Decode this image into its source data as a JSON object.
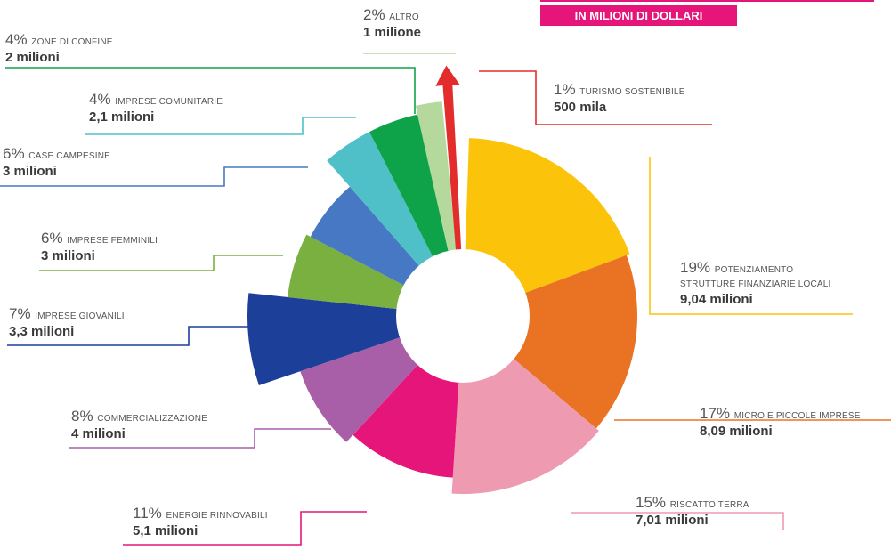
{
  "header": {
    "subtitle": "IN MILIONI DI DOLLARI"
  },
  "chart_data": {
    "type": "pie",
    "title": "",
    "subtitle": "IN MILIONI DI DOLLARI",
    "unit": "milioni di dollari",
    "slices": [
      {
        "key": "strutture",
        "pct_label": "19%",
        "category": "POTENZIAMENTO",
        "category2": "STRUTTURE FINANZIARIE LOCALI",
        "amount_label": "9,04 milioni",
        "percent": 19,
        "value": 9.04,
        "color": "#fbc40a"
      },
      {
        "key": "micro",
        "pct_label": "17%",
        "category": "MICRO E PICCOLE IMPRESE",
        "amount_label": "8,09 milioni",
        "percent": 17,
        "value": 8.09,
        "color": "#ea7223"
      },
      {
        "key": "riscatto",
        "pct_label": "15%",
        "category": "RISCATTO TERRA",
        "amount_label": "7,01 milioni",
        "percent": 15,
        "value": 7.01,
        "color": "#ee9ab0"
      },
      {
        "key": "energie",
        "pct_label": "11%",
        "category": "ENERGIE RINNOVABILI",
        "amount_label": "5,1 milioni",
        "percent": 11,
        "value": 5.1,
        "color": "#e5157a"
      },
      {
        "key": "commerc",
        "pct_label": "8%",
        "category": "COMMERCIALIZZAZIONE",
        "amount_label": "4 milioni",
        "percent": 8,
        "value": 4,
        "color": "#a95ea8"
      },
      {
        "key": "giovanili",
        "pct_label": "7%",
        "category": "IMPRESE GIOVANILI",
        "amount_label": "3,3 milioni",
        "percent": 7,
        "value": 3.3,
        "color": "#1c3f9a"
      },
      {
        "key": "femminili",
        "pct_label": "6%",
        "category": "IMPRESE FEMMINILI",
        "amount_label": "3 milioni",
        "percent": 6,
        "value": 3,
        "color": "#7ab040"
      },
      {
        "key": "case",
        "pct_label": "6%",
        "category": "CASE CAMPESINE",
        "amount_label": "3 milioni",
        "percent": 6,
        "value": 3,
        "color": "#4678c4"
      },
      {
        "key": "comunitarie",
        "pct_label": "4%",
        "category": "IMPRESE COMUNITARIE",
        "amount_label": "2,1 milioni",
        "percent": 4,
        "value": 2.1,
        "color": "#4fc0c8"
      },
      {
        "key": "confine",
        "pct_label": "4%",
        "category": "ZONE DI CONFINE",
        "amount_label": "2 milioni",
        "percent": 4,
        "value": 2,
        "color": "#0ea348"
      },
      {
        "key": "altro",
        "pct_label": "2%",
        "category": "ALTRO",
        "amount_label": "1 milione",
        "percent": 2,
        "value": 1,
        "color": "#b5d99c"
      },
      {
        "key": "turismo",
        "pct_label": "1%",
        "category": "TURISMO SOSTENIBILE",
        "amount_label": "500 mila",
        "percent": 1,
        "value": 0.5,
        "color": "#e32d2d"
      }
    ]
  }
}
